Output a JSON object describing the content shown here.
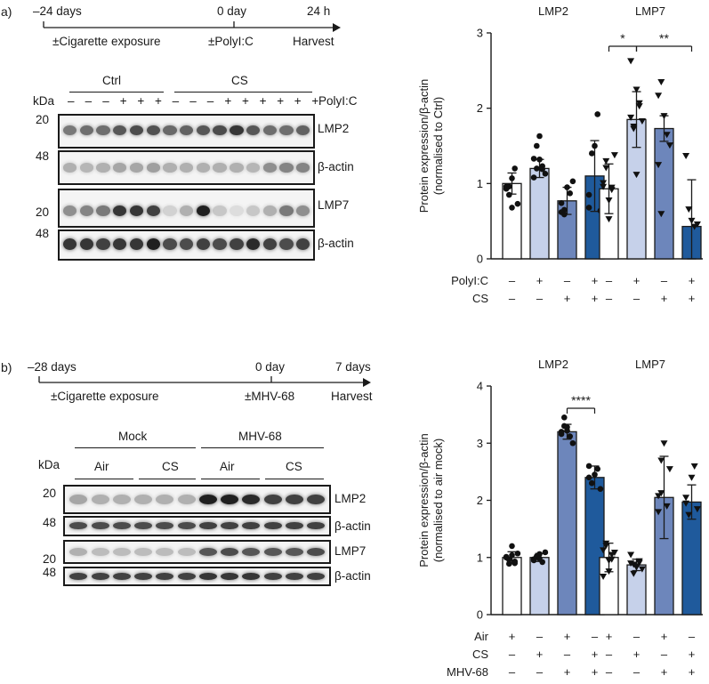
{
  "panel_a": {
    "label": "a)",
    "timeline": {
      "ticks": [
        "–24 days",
        "0 day",
        "24 h"
      ],
      "events": [
        "±Cigarette exposure",
        "±PolyI:C",
        "Harvest"
      ]
    },
    "blot": {
      "kda_label": "kDa",
      "groups": [
        "Ctrl",
        "CS"
      ],
      "treatment_label": "PolyI:C",
      "lane_signs": [
        "–",
        "–",
        "–",
        "+",
        "+",
        "+",
        "–",
        "–",
        "–",
        "+",
        "+",
        "+",
        "+",
        "+",
        "+"
      ],
      "rows": [
        {
          "label": "LMP2",
          "marker": "20"
        },
        {
          "label": "β-actin",
          "marker": "48"
        },
        {
          "label": "LMP7",
          "marker": "20"
        },
        {
          "label": "β-actin",
          "marker": "48"
        }
      ]
    }
  },
  "panel_b": {
    "label": "b)",
    "timeline": {
      "ticks": [
        "–28 days",
        "0 day",
        "7 days"
      ],
      "events": [
        "±Cigarette exposure",
        "±MHV-68",
        "Harvest"
      ]
    },
    "blot": {
      "kda_label": "kDa",
      "groups": [
        "Mock",
        "MHV-68"
      ],
      "subgroups": [
        "Air",
        "CS",
        "Air",
        "CS"
      ],
      "rows": [
        {
          "label": "LMP2",
          "marker": "20"
        },
        {
          "label": "β-actin",
          "marker": "48"
        },
        {
          "label": "LMP7",
          "marker": "20"
        },
        {
          "label": "β-actin",
          "marker": "48"
        }
      ]
    }
  },
  "colors": [
    "#ffffff",
    "#c6d1ea",
    "#6d86bb",
    "#1f5a9c"
  ],
  "chart_data": [
    {
      "type": "bar",
      "panel": "a",
      "ylabel": "Protein expression/β-actin (normalised to Ctrl)",
      "ylim": [
        0,
        3
      ],
      "yticks": [
        "0",
        "1",
        "2",
        "3"
      ],
      "group_titles": [
        "LMP2",
        "LMP7"
      ],
      "series": [
        {
          "name": "Ctrl",
          "values": [
            1.0,
            0.93
          ],
          "err": [
            0.14,
            0.33
          ]
        },
        {
          "name": "PolyI:C",
          "values": [
            1.2,
            1.85
          ],
          "err": [
            0.12,
            0.37
          ]
        },
        {
          "name": "CS",
          "values": [
            0.77,
            1.73
          ],
          "err": [
            0.18,
            0.17
          ]
        },
        {
          "name": "CS + PolyI:C",
          "values": [
            1.1,
            0.43
          ],
          "err": [
            0.47,
            0.62
          ]
        }
      ],
      "points": [
        [
          [
            0.93,
            0.85,
            1.07,
            1.2,
            0.73,
            0.96,
            0.96,
            0.68
          ],
          [
            1.08,
            1.2,
            1.32,
            1.23,
            1.13,
            1.33,
            1.5,
            1.63,
            1.19
          ],
          [
            0.74,
            0.65,
            0.95,
            0.87,
            1.03,
            0.62,
            0.59
          ],
          [
            0.85,
            1.4,
            1.5,
            1.92,
            0.64,
            0.68
          ]
        ],
        [
          [
            1.01,
            1.3,
            0.78,
            0.92,
            1.38,
            0.96,
            1.21,
            0.53,
            0.95
          ],
          [
            2.63,
            1.73,
            2.25,
            2.07,
            1.83,
            1.88,
            1.76,
            1.12,
            2.03
          ],
          [
            2.17,
            2.35,
            1.9,
            1.65,
            1.51,
            1.25,
            0.6
          ],
          [
            1.37,
            0.66,
            0.51,
            0.43,
            0.46
          ]
        ]
      ],
      "marker_shapes": [
        "circle",
        "triangle-down"
      ],
      "significance": [
        {
          "group": 1,
          "from": 0,
          "to": 1,
          "label": "*"
        },
        {
          "group": 1,
          "from": 1,
          "to": 3,
          "label": "**"
        }
      ],
      "condition_rows": [
        {
          "label": "PolyI:C",
          "signs": [
            "–",
            "+",
            "–",
            "+",
            "–",
            "+",
            "–",
            "+"
          ]
        },
        {
          "label": "CS",
          "signs": [
            "–",
            "–",
            "+",
            "+",
            "–",
            "–",
            "+",
            "+"
          ]
        }
      ]
    },
    {
      "type": "bar",
      "panel": "b",
      "ylabel": "Protein expression/β-actin (normalised to air mock)",
      "ylim": [
        0,
        4
      ],
      "yticks": [
        "0",
        "1",
        "2",
        "3",
        "4"
      ],
      "group_titles": [
        "LMP2",
        "LMP7"
      ],
      "series": [
        {
          "name": "Air mock",
          "values": [
            1.0,
            1.0
          ],
          "err": [
            0.1,
            0.25
          ]
        },
        {
          "name": "CS mock",
          "values": [
            1.0,
            0.87
          ],
          "err": [
            0.07,
            0.1
          ]
        },
        {
          "name": "Air MHV-68",
          "values": [
            3.2,
            2.05
          ],
          "err": [
            0.13,
            0.72
          ]
        },
        {
          "name": "CS MHV-68",
          "values": [
            2.4,
            1.97
          ],
          "err": [
            0.2,
            0.3
          ]
        }
      ],
      "points": [
        [
          [
            1.0,
            0.96,
            1.04,
            0.93,
            1.07,
            1.01,
            0.89,
            1.2,
            0.9
          ],
          [
            0.97,
            1.02,
            1.06,
            0.92,
            1.09,
            0.95,
            1.01,
            0.98
          ],
          [
            3.2,
            3.45,
            3.28,
            3.12,
            3.0,
            3.16,
            3.3,
            3.22
          ],
          [
            2.6,
            2.3,
            2.45,
            2.55,
            2.2,
            2.4
          ]
        ],
        [
          [
            1.13,
            1.25,
            0.95,
            1.05,
            1.09,
            0.67,
            1.21,
            0.76,
            0.97
          ],
          [
            0.9,
            0.72,
            0.83,
            0.94,
            0.8,
            1.05,
            0.88,
            0.85,
            0.91
          ],
          [
            2.08,
            2.7,
            3.0,
            1.9,
            2.55,
            1.8,
            2.13
          ],
          [
            2.05,
            1.75,
            2.4,
            2.6,
            1.85,
            1.95
          ]
        ]
      ],
      "marker_shapes": [
        "circle",
        "triangle-down"
      ],
      "significance": [
        {
          "group": 0,
          "from": 2,
          "to": 3,
          "label": "****"
        }
      ],
      "condition_rows": [
        {
          "label": "Air",
          "signs": [
            "+",
            "–",
            "+",
            "–",
            "+",
            "–",
            "+",
            "–"
          ]
        },
        {
          "label": "CS",
          "signs": [
            "–",
            "+",
            "–",
            "+",
            "–",
            "+",
            "–",
            "+"
          ]
        },
        {
          "label": "MHV-68",
          "signs": [
            "–",
            "–",
            "+",
            "+",
            "–",
            "–",
            "+",
            "+"
          ]
        }
      ]
    }
  ]
}
